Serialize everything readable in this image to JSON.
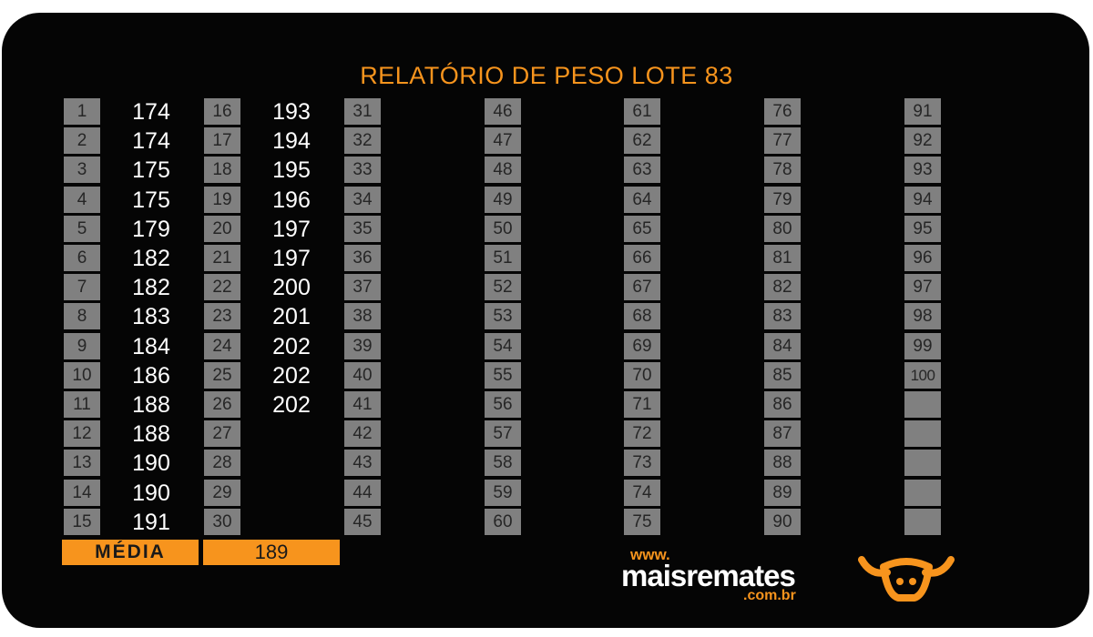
{
  "report": {
    "title": "RELATÓRIO DE PESO LOTE 83",
    "columns": [
      {
        "numbers": [
          "1",
          "2",
          "3",
          "4",
          "5",
          "6",
          "7",
          "8",
          "9",
          "10",
          "11",
          "12",
          "13",
          "14",
          "15"
        ],
        "weights": [
          "174",
          "174",
          "175",
          "175",
          "179",
          "182",
          "182",
          "183",
          "184",
          "186",
          "188",
          "188",
          "190",
          "190",
          "191"
        ]
      },
      {
        "numbers": [
          "16",
          "17",
          "18",
          "19",
          "20",
          "21",
          "22",
          "23",
          "24",
          "25",
          "26",
          "27",
          "28",
          "29",
          "30"
        ],
        "weights": [
          "193",
          "194",
          "195",
          "196",
          "197",
          "197",
          "200",
          "201",
          "202",
          "202",
          "202"
        ]
      },
      {
        "numbers": [
          "31",
          "32",
          "33",
          "34",
          "35",
          "36",
          "37",
          "38",
          "39",
          "40",
          "41",
          "42",
          "43",
          "44",
          "45"
        ],
        "weights": []
      },
      {
        "numbers": [
          "46",
          "47",
          "48",
          "49",
          "50",
          "51",
          "52",
          "53",
          "54",
          "55",
          "56",
          "57",
          "58",
          "59",
          "60"
        ],
        "weights": []
      },
      {
        "numbers": [
          "61",
          "62",
          "63",
          "64",
          "65",
          "66",
          "67",
          "68",
          "69",
          "70",
          "71",
          "72",
          "73",
          "74",
          "75"
        ],
        "weights": []
      },
      {
        "numbers": [
          "76",
          "77",
          "78",
          "79",
          "80",
          "81",
          "82",
          "83",
          "84",
          "85",
          "86",
          "87",
          "88",
          "89",
          "90"
        ],
        "weights": []
      },
      {
        "numbers": [
          "91",
          "92",
          "93",
          "94",
          "95",
          "96",
          "97",
          "98",
          "99",
          "100",
          "",
          "",
          "",
          "",
          ""
        ],
        "weights": []
      }
    ],
    "average_label": "MÉDIA",
    "average_value": "189"
  },
  "brand": {
    "www": "www.",
    "name": "maisremates",
    "domain": ".com.br",
    "logo_icon": "bull-head-icon"
  },
  "colors": {
    "accent": "#f7941d",
    "box": "#808080",
    "background": "#050505",
    "text": "#ffffff"
  }
}
